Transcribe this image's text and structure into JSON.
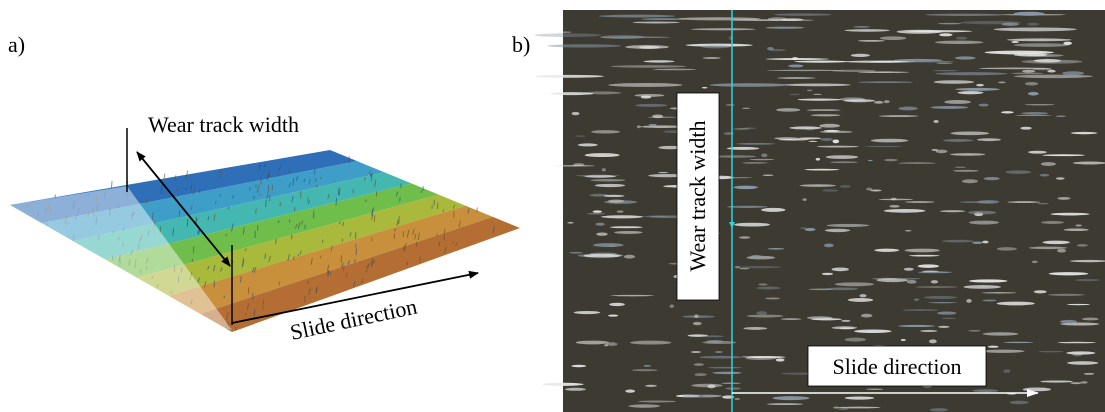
{
  "panels": [
    {
      "label": "a)",
      "annotations": [
        "Wear track width",
        "Slide direction"
      ]
    },
    {
      "label": "b)",
      "annotations": [
        "Wear track width",
        "Slide direction"
      ]
    }
  ]
}
